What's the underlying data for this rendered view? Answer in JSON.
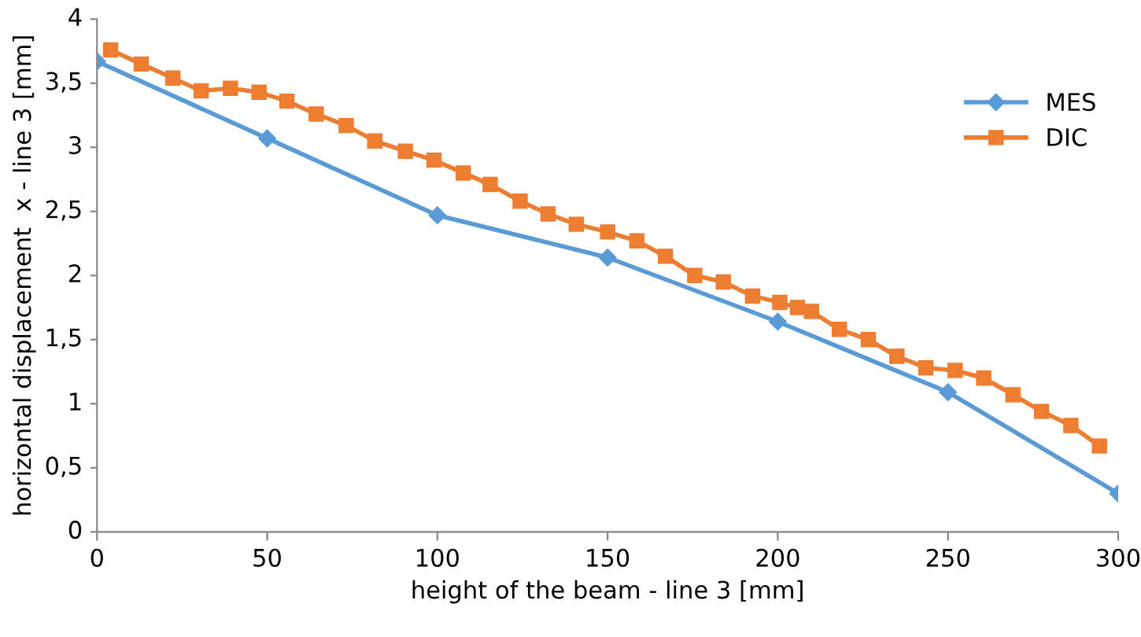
{
  "chart_data": {
    "type": "line",
    "xlabel": "height of the beam - line 3 [mm]",
    "ylabel": "horizontal displacement  x - line 3 [mm]",
    "xlim": [
      0,
      300
    ],
    "xticks": [
      0,
      50,
      100,
      150,
      200,
      250,
      300
    ],
    "ylim": [
      0,
      4
    ],
    "yticks": [
      0,
      {
        "value": 0.5,
        "label": "0,5"
      },
      1,
      {
        "value": 1.5,
        "label": "1,5"
      },
      2,
      {
        "value": 2.5,
        "label": "2,5"
      },
      3,
      {
        "value": 3.5,
        "label": "3,5"
      },
      4
    ],
    "grid": false,
    "legend": "right",
    "series": [
      {
        "name": "MES",
        "color": "#5b9bd5",
        "marker": "diamond",
        "x": [
          0,
          50,
          100,
          150,
          200,
          250,
          300
        ],
        "values": [
          3.67,
          3.07,
          2.47,
          2.14,
          1.64,
          1.09,
          0.3
        ]
      },
      {
        "name": "DIC",
        "color": "#ed7d31",
        "marker": "square",
        "x": [
          4,
          13,
          22.3,
          30.6,
          39.2,
          47.6,
          55.8,
          64.4,
          73.2,
          81.6,
          90.6,
          99,
          107.6,
          115.5,
          124.3,
          132.5,
          140.8,
          150,
          158.6,
          167,
          175.6,
          184,
          192.6,
          200.6,
          205.8,
          209.9,
          218.1,
          226.6,
          235,
          243.5,
          252.1,
          260.5,
          269.1,
          277.5,
          286.1,
          294.5
        ],
        "values": [
          3.76,
          3.65,
          3.54,
          3.44,
          3.46,
          3.43,
          3.36,
          3.26,
          3.17,
          3.05,
          2.97,
          2.9,
          2.8,
          2.71,
          2.58,
          2.48,
          2.4,
          2.34,
          2.27,
          2.15,
          2,
          1.95,
          1.84,
          1.79,
          1.75,
          1.72,
          1.58,
          1.5,
          1.37,
          1.28,
          1.26,
          1.2,
          1.07,
          0.94,
          0.83,
          0.67
        ]
      }
    ]
  }
}
